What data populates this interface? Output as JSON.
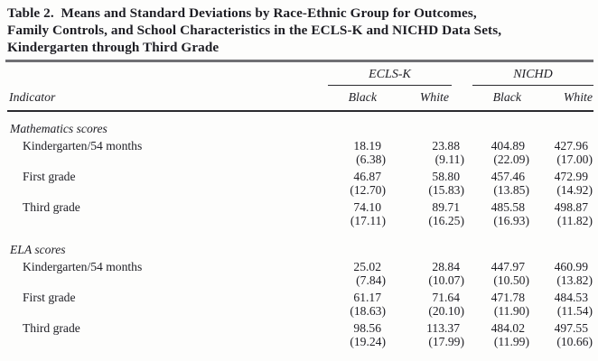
{
  "title": {
    "lines": [
      "Table 2.  Means and Standard Deviations by Race-Ethnic Group for Outcomes,",
      "Family Controls, and School Characteristics in the ECLS-K and NICHD Data Sets,",
      "Kindergarten through Third Grade"
    ]
  },
  "table": {
    "indicator_header": "Indicator",
    "group_headers": {
      "group1": "ECLS-K",
      "group2": "NICHD"
    },
    "sub_headers": [
      "Black",
      "White",
      "Black",
      "White"
    ],
    "sections": [
      {
        "label": "Mathematics scores",
        "rows": [
          {
            "label": "Kindergarten/54 months",
            "means": [
              "18.19",
              "23.88",
              "404.89",
              "427.96"
            ],
            "sds": [
              "(6.38)",
              "(9.11)",
              "(22.09)",
              "(17.00)"
            ]
          },
          {
            "label": "First grade",
            "means": [
              "46.87",
              "58.80",
              "457.46",
              "472.99"
            ],
            "sds": [
              "(12.70)",
              "(15.83)",
              "(13.85)",
              "(14.92)"
            ]
          },
          {
            "label": "Third grade",
            "means": [
              "74.10",
              "89.71",
              "485.58",
              "498.87"
            ],
            "sds": [
              "(17.11)",
              "(16.25)",
              "(16.93)",
              "(11.82)"
            ]
          }
        ]
      },
      {
        "label": "ELA scores",
        "rows": [
          {
            "label": "Kindergarten/54 months",
            "means": [
              "25.02",
              "28.84",
              "447.97",
              "460.99"
            ],
            "sds": [
              "(7.84)",
              "(10.07)",
              "(10.50)",
              "(13.82)"
            ]
          },
          {
            "label": "First grade",
            "means": [
              "61.17",
              "71.64",
              "471.78",
              "484.53"
            ],
            "sds": [
              "(18.63)",
              "(20.10)",
              "(11.90)",
              "(11.54)"
            ]
          },
          {
            "label": "Third grade",
            "means": [
              "98.56",
              "113.37",
              "484.02",
              "497.55"
            ],
            "sds": [
              "(19.24)",
              "(17.99)",
              "(11.99)",
              "(10.66)"
            ]
          }
        ]
      }
    ]
  }
}
